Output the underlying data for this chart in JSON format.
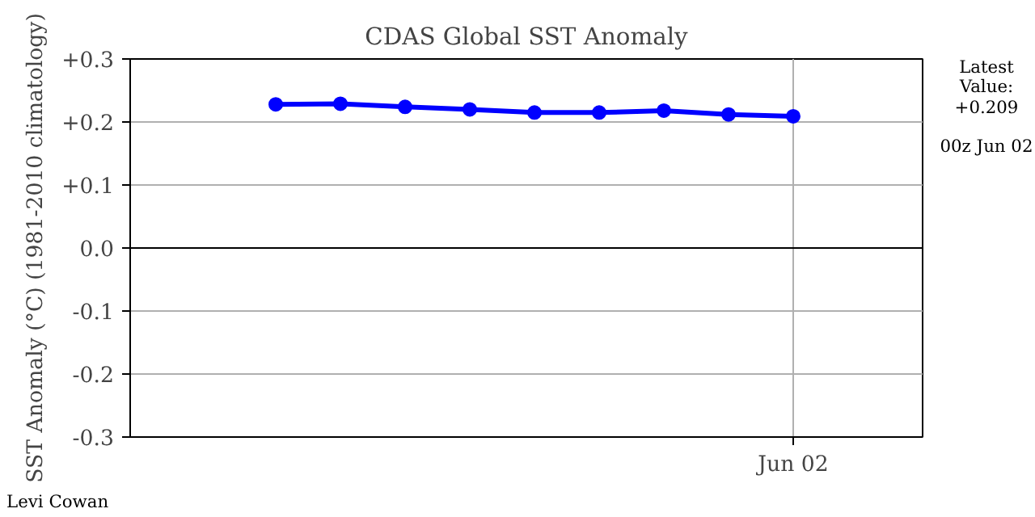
{
  "chart_data": {
    "type": "line",
    "title": "CDAS Global SST Anomaly",
    "ylabel": "SST Anomaly (°C) (1981-2010 climatology)",
    "categories": [
      null,
      null,
      null,
      null,
      null,
      null,
      null,
      null,
      "Jun 02"
    ],
    "series": [
      {
        "color": "#0000ff",
        "values": [
          0.228,
          0.229,
          0.224,
          0.22,
          0.215,
          0.215,
          0.218,
          0.212,
          0.209
        ]
      }
    ],
    "ylim": [
      -0.3,
      0.3
    ],
    "yticks": [
      {
        "value": -0.3,
        "label": "-0.3"
      },
      {
        "value": -0.2,
        "label": "-0.2"
      },
      {
        "value": -0.1,
        "label": "-0.1"
      },
      {
        "value": 0,
        "label": "0.0"
      },
      {
        "value": 0.1,
        "label": "+0.1"
      },
      {
        "value": 0.2,
        "label": "+0.2"
      },
      {
        "value": 0.3,
        "label": "+0.3"
      }
    ],
    "ref_lines": [
      {
        "axis": "y",
        "value": 0,
        "color": "#000000"
      }
    ],
    "grid": true,
    "marker": "circle",
    "line_style": "solid",
    "annotations": [
      "Latest Value: +0.209",
      "00z Jun 02",
      "Levi Cowan"
    ]
  }
}
